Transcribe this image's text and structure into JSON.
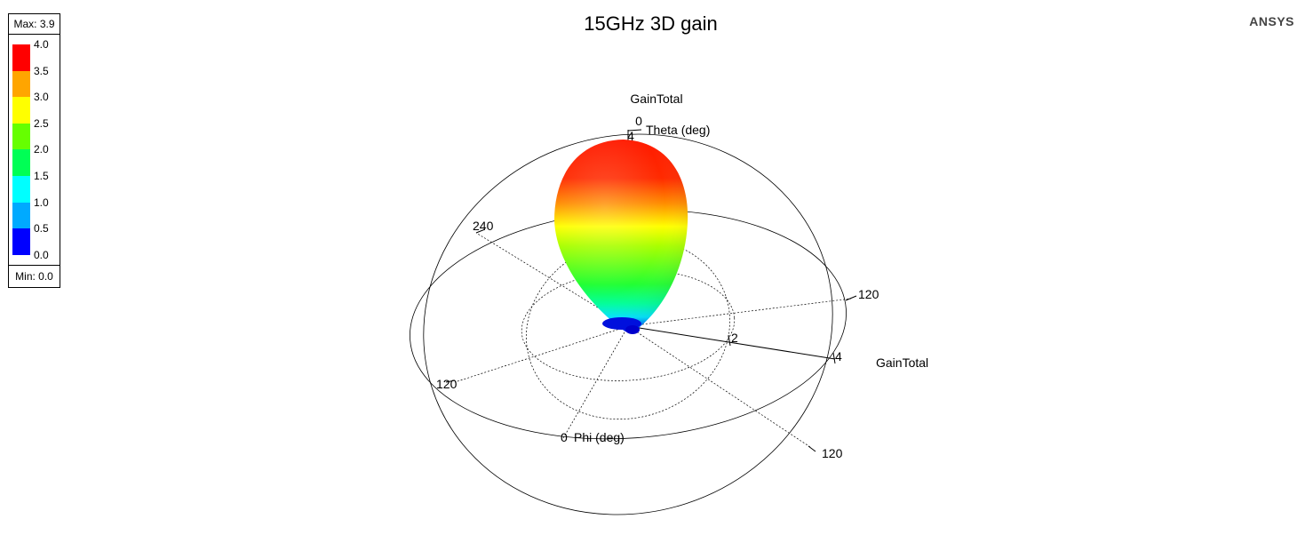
{
  "header": {
    "title": "15GHz 3D gain",
    "brand": "ANSYS"
  },
  "legend": {
    "max_label": "Max: 3.9",
    "min_label": "Min: 0.0",
    "ticks": [
      "4.0",
      "3.5",
      "3.0",
      "2.5",
      "2.0",
      "1.5",
      "1.0",
      "0.5",
      "0.0"
    ],
    "colors": [
      "#ff0000",
      "#ffa500",
      "#ffff00",
      "#66ff00",
      "#00ff55",
      "#00ffff",
      "#00aaff",
      "#0000ff"
    ]
  },
  "plot": {
    "quantity_label": "GainTotal",
    "axis_label_gain": "GainTotal",
    "theta_label": "Theta (deg)",
    "phi_label": "Phi (deg)",
    "theta_zero": "0",
    "phi_zero": "0",
    "radial_marks": [
      "2",
      "4"
    ],
    "top_mark": "4",
    "angle_labels": [
      "240",
      "120",
      "120",
      "120"
    ]
  },
  "chart_data": {
    "type": "3d-radiation-pattern",
    "title": "15GHz 3D gain",
    "quantity": "GainTotal",
    "max": 3.9,
    "min": 0.0,
    "color_scale": [
      0.0,
      0.5,
      1.0,
      1.5,
      2.0,
      2.5,
      3.0,
      3.5,
      4.0
    ],
    "radial_ticks": [
      2,
      4
    ],
    "theta_axis": "Theta (deg)",
    "phi_axis": "Phi (deg)"
  }
}
